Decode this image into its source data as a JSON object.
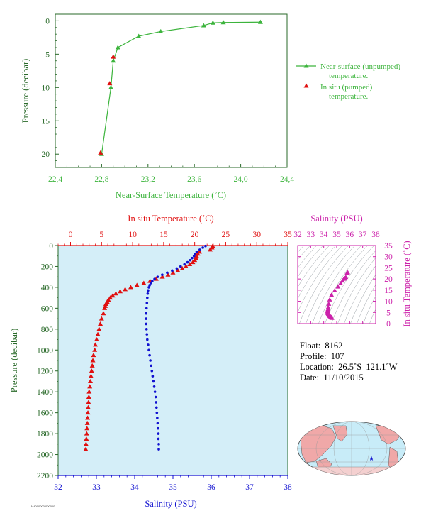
{
  "colors": {
    "green": "#3cb43c",
    "red": "#e01010",
    "blue": "#1010d0",
    "magenta": "#cc22aa",
    "darkgreen": "#2a6a2a",
    "plot_bg": "#d4eef8",
    "land": "#f0a8a8",
    "ocean": "#c8ecf8"
  },
  "chart_data": [
    {
      "type": "line",
      "xlabel": "Near-Surface Temperature (˚C)",
      "ylabel": "Pressure (decibar)",
      "xlim": [
        22.4,
        24.4
      ],
      "ylim": [
        22,
        -1
      ],
      "x_ticks": [
        "22,4",
        "22,8",
        "23,2",
        "23,6",
        "24,0",
        "24,4"
      ],
      "y_ticks": [
        "0",
        "5",
        "10",
        "15",
        "20"
      ],
      "legend": [
        "Near-surface (unpumped)",
        "temperature.",
        "In situ (pumped)",
        "temperature."
      ],
      "series": [
        {
          "name": "Near-surface (unpumped) temperature.",
          "x": [
            22.8,
            22.88,
            22.9,
            22.94,
            23.12,
            23.31,
            23.68,
            23.76,
            23.85,
            24.17
          ],
          "y": [
            20,
            10,
            6,
            4,
            2.3,
            1.6,
            0.7,
            0.3,
            0.25,
            0.2
          ]
        },
        {
          "name": "In situ (pumped) temperature.",
          "x": [
            22.79,
            22.87,
            22.9
          ],
          "y": [
            19.8,
            9.4,
            5.4
          ]
        }
      ]
    },
    {
      "type": "line",
      "xlabel_top": "In situ Temperature (˚C)",
      "xlabel_bottom": "Salinity (PSU)",
      "ylabel": "Pressure (decibar)",
      "temp_lim": [
        -2,
        35
      ],
      "sal_lim": [
        32,
        38
      ],
      "ylim": [
        2200,
        0
      ],
      "temp_ticks": [
        "0",
        "5",
        "10",
        "15",
        "20",
        "25",
        "30",
        "35"
      ],
      "sal_ticks": [
        "32",
        "33",
        "34",
        "35",
        "36",
        "37",
        "38"
      ],
      "y_ticks": [
        "0",
        "200",
        "400",
        "600",
        "800",
        "1000",
        "1200",
        "1400",
        "1600",
        "1800",
        "2000",
        "2200"
      ],
      "series": [
        {
          "name": "In situ Temperature",
          "p": [
            5,
            20,
            40,
            60,
            80,
            100,
            120,
            140,
            160,
            180,
            200,
            220,
            240,
            260,
            280,
            300,
            320,
            340,
            360,
            380,
            400,
            420,
            440,
            460,
            480,
            500,
            520,
            540,
            560,
            580,
            600,
            650,
            700,
            750,
            800,
            850,
            900,
            950,
            1000,
            1050,
            1100,
            1150,
            1200,
            1250,
            1300,
            1350,
            1400,
            1450,
            1500,
            1550,
            1600,
            1650,
            1700,
            1750,
            1800,
            1850,
            1900,
            1950
          ],
          "t": [
            22.9,
            22.8,
            22.5,
            20.8,
            20.5,
            20.3,
            20.2,
            20.0,
            19.7,
            19.2,
            18.6,
            18.0,
            17.3,
            16.5,
            15.7,
            14.8,
            13.8,
            12.8,
            11.8,
            10.7,
            9.7,
            8.8,
            8.0,
            7.3,
            6.8,
            6.4,
            6.1,
            5.9,
            5.7,
            5.6,
            5.5,
            5.3,
            5.0,
            4.8,
            4.6,
            4.4,
            4.2,
            4.0,
            3.9,
            3.7,
            3.6,
            3.5,
            3.4,
            3.3,
            3.2,
            3.1,
            3.0,
            2.95,
            2.9,
            2.85,
            2.8,
            2.75,
            2.7,
            2.65,
            2.6,
            2.55,
            2.5,
            2.45
          ]
        },
        {
          "name": "Salinity",
          "p": [
            5,
            20,
            40,
            60,
            80,
            100,
            120,
            140,
            160,
            180,
            200,
            220,
            240,
            260,
            280,
            300,
            320,
            340,
            360,
            380,
            400,
            430,
            460,
            500,
            550,
            600,
            650,
            700,
            750,
            800,
            850,
            900,
            950,
            1000,
            1050,
            1100,
            1150,
            1200,
            1250,
            1300,
            1350,
            1400,
            1450,
            1500,
            1550,
            1600,
            1650,
            1700,
            1750,
            1800,
            1850,
            1900,
            1950
          ],
          "s": [
            35.85,
            35.78,
            35.7,
            35.62,
            35.58,
            35.55,
            35.5,
            35.45,
            35.38,
            35.3,
            35.2,
            35.1,
            34.98,
            34.85,
            34.72,
            34.6,
            34.52,
            34.46,
            34.42,
            34.39,
            34.37,
            34.35,
            34.34,
            34.33,
            34.32,
            34.31,
            34.3,
            34.3,
            34.3,
            34.31,
            34.32,
            34.33,
            34.35,
            34.37,
            34.39,
            34.41,
            34.43,
            34.45,
            34.47,
            34.49,
            34.51,
            34.53,
            34.55,
            34.56,
            34.57,
            34.58,
            34.59,
            34.6,
            34.61,
            34.62,
            34.62,
            34.63,
            34.63
          ]
        }
      ]
    },
    {
      "type": "scatter",
      "title": "Salinity (PSU)",
      "ylabel": "In situ Temperature (˚C)",
      "xlim": [
        32,
        38
      ],
      "ylim": [
        0,
        35
      ],
      "x_ticks": [
        "32",
        "33",
        "34",
        "35",
        "36",
        "37",
        "38"
      ],
      "y_ticks": [
        "0",
        "5",
        "10",
        "15",
        "20",
        "25",
        "30",
        "35"
      ],
      "series": [
        {
          "name": "T-S",
          "s": [
            35.85,
            35.78,
            35.7,
            35.62,
            35.55,
            35.45,
            35.3,
            35.1,
            34.85,
            34.6,
            34.46,
            34.39,
            34.35,
            34.33,
            34.31,
            34.3,
            34.3,
            34.32,
            34.35,
            34.39,
            34.43,
            34.47,
            34.51,
            34.55,
            34.58,
            34.6,
            34.62,
            34.63
          ],
          "t": [
            22.9,
            22.5,
            20.8,
            20.3,
            20.0,
            19.2,
            18.0,
            16.5,
            14.8,
            12.8,
            10.7,
            8.8,
            7.3,
            6.4,
            5.9,
            5.5,
            5.0,
            4.6,
            4.2,
            3.9,
            3.6,
            3.4,
            3.2,
            3.0,
            2.85,
            2.7,
            2.6,
            2.45
          ]
        }
      ]
    }
  ],
  "info": {
    "float_label": "Float:",
    "float_value": "8162",
    "profile_label": "Profile:",
    "profile_value": "107",
    "location_label": "Location:",
    "location_value": "26.5˚S  121.1˚W",
    "date_label": "Date:",
    "date_value": "11/10/2015"
  },
  "footer_code": "M4000000 000000"
}
